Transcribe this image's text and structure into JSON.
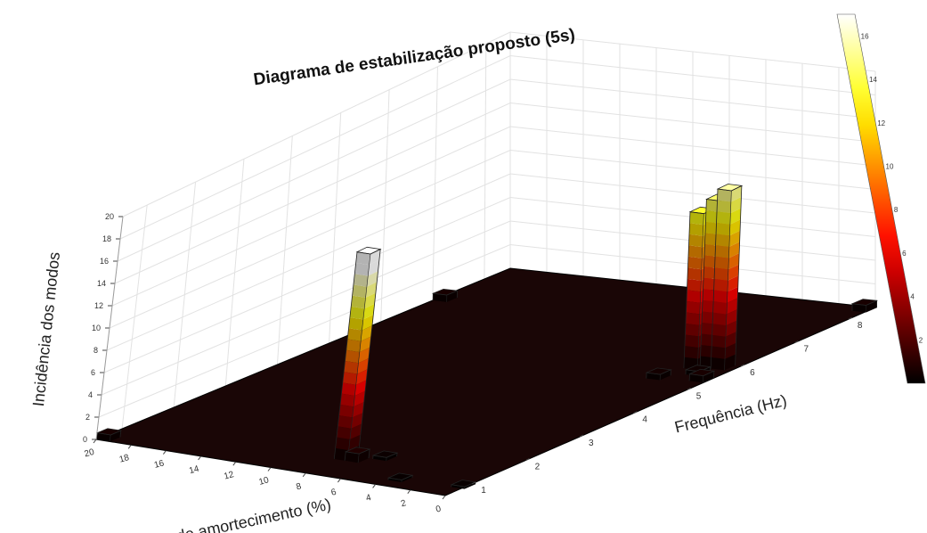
{
  "chart_data": {
    "type": "bar3d",
    "title": "Diagrama de estabilização proposto (5s)",
    "xlabel": "Frequência (Hz)",
    "ylabel": "Taxa de amortecimento (%)",
    "zlabel": "Incidência dos modos",
    "xlim": [
      0.5,
      8.5
    ],
    "ylim": [
      0,
      20
    ],
    "zlim": [
      0,
      20
    ],
    "x_ticks": [
      "1",
      "2",
      "3",
      "4",
      "5",
      "6",
      "7",
      "8"
    ],
    "y_ticks": [
      "0",
      "2",
      "4",
      "6",
      "8",
      "10",
      "12",
      "14",
      "16",
      "18",
      "20"
    ],
    "z_ticks": [
      "0",
      "2",
      "4",
      "6",
      "8",
      "10",
      "12",
      "14",
      "16",
      "18",
      "20"
    ],
    "colorbar": {
      "colormap": "hot",
      "range": [
        0,
        17
      ],
      "ticks": [
        "0",
        "2",
        "4",
        "6",
        "8",
        "10",
        "12",
        "14",
        "16"
      ]
    },
    "grid": true,
    "bars": [
      {
        "x": 1.2,
        "y": 7.8,
        "z": 18.5
      },
      {
        "x": 1.2,
        "y": 7.2,
        "z": 0.8
      },
      {
        "x": 1.4,
        "y": 6.2,
        "z": 0.3
      },
      {
        "x": 0.8,
        "y": 3.5,
        "z": 0.2
      },
      {
        "x": 0.9,
        "y": 0.2,
        "z": 0.2
      },
      {
        "x": 0.6,
        "y": 19.6,
        "z": 0.6
      },
      {
        "x": 5.8,
        "y": 1.9,
        "z": 13.5
      },
      {
        "x": 5.9,
        "y": 1.3,
        "z": 14.5
      },
      {
        "x": 5.9,
        "y": 0.7,
        "z": 15.5
      },
      {
        "x": 5.3,
        "y": 2.5,
        "z": 0.5
      },
      {
        "x": 5.6,
        "y": 1.2,
        "z": 0.4
      },
      {
        "x": 5.4,
        "y": 0.4,
        "z": 0.6
      },
      {
        "x": 7.1,
        "y": 19.6,
        "z": 0.6
      },
      {
        "x": 8.4,
        "y": 0.3,
        "z": 0.6
      }
    ]
  }
}
